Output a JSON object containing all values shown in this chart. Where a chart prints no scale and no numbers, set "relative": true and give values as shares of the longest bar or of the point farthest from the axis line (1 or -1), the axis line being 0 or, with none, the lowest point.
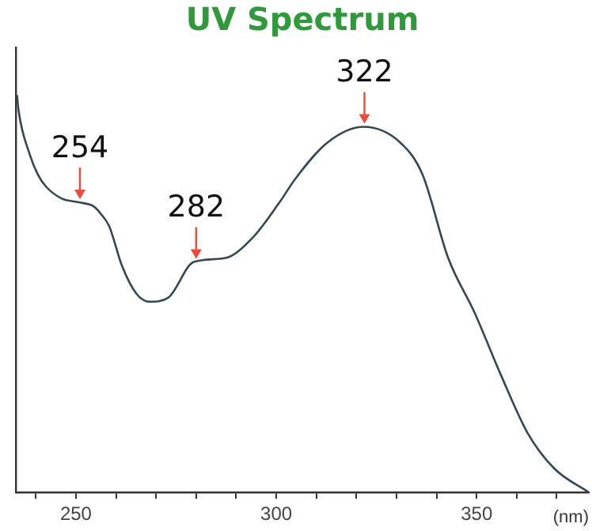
{
  "chart_data": {
    "type": "line",
    "title": "UV Spectrum",
    "xlabel": "(nm)",
    "relative": true,
    "tick_labels": "x",
    "grid": false,
    "legend": false,
    "marker": "none",
    "line_style": "solid",
    "x": [
      235.3,
      235.7,
      238.5,
      240.5,
      242.5,
      246.4,
      250.8,
      254.4,
      256.3,
      258.3,
      261.5,
      265.1,
      268.3,
      273.0,
      279.4,
      287.3,
      294.0,
      300.8,
      304.8,
      312.7,
      321.8,
      331.0,
      336.5,
      342.9,
      349.6,
      356.3,
      362.7,
      369.4,
      378
    ],
    "series": [
      {
        "color": "#37474f",
        "values": [
          1.0,
          0.96,
          0.85,
          0.8,
          0.77,
          0.74,
          0.73,
          0.72,
          0.7,
          0.67,
          0.57,
          0.5,
          0.48,
          0.49,
          0.58,
          0.59,
          0.64,
          0.73,
          0.79,
          0.88,
          0.92,
          0.88,
          0.8,
          0.59,
          0.45,
          0.29,
          0.15,
          0.06,
          0.0
        ]
      }
    ],
    "xlim": [
      235,
      378
    ],
    "xticks": [
      {
        "value": 240,
        "label": null
      },
      250,
      {
        "value": 260,
        "label": null
      },
      {
        "value": 270,
        "label": null
      },
      {
        "value": 280,
        "label": null
      },
      {
        "value": 290,
        "label": null
      },
      300,
      {
        "value": 310,
        "label": null
      },
      {
        "value": 320,
        "label": null
      },
      {
        "value": 330,
        "label": null
      },
      {
        "value": 340,
        "label": null
      },
      350,
      {
        "value": 360,
        "label": null
      },
      {
        "value": 370,
        "label": null
      }
    ],
    "annotations": [
      {
        "text": "254",
        "x": 251,
        "y": 0.73
      },
      {
        "text": "282",
        "x": 280,
        "y": 0.58
      },
      {
        "text": "322",
        "x": 322,
        "y": 0.92
      }
    ]
  }
}
